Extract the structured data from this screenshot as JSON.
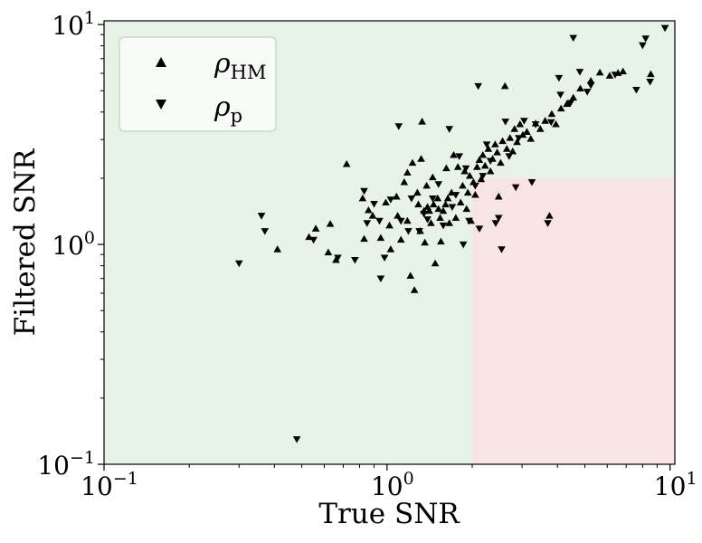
{
  "chart_data": {
    "type": "scatter",
    "title": "",
    "xlabel": "True SNR",
    "ylabel": "Filtered SNR",
    "xscale": "log",
    "yscale": "log",
    "xlim": [
      0.1,
      10.4
    ],
    "ylim": [
      0.1,
      10.4
    ],
    "x_ticks": [
      {
        "base": "10",
        "exp": "−1"
      },
      {
        "base": "10",
        "exp": "0"
      },
      {
        "base": "10",
        "exp": "1"
      }
    ],
    "y_ticks": [
      {
        "base": "10",
        "exp": "−1"
      },
      {
        "base": "10",
        "exp": "0"
      },
      {
        "base": "10",
        "exp": "1"
      }
    ],
    "grid": false,
    "legend": {
      "placement": "top-left",
      "entries": [
        {
          "symbol": "triangle-up",
          "label": "ρ",
          "subscript": "HM"
        },
        {
          "symbol": "triangle-down",
          "label": "ρ",
          "subscript": "p"
        }
      ]
    },
    "regions": [
      {
        "name": "background",
        "color": "#e8f3e8"
      },
      {
        "name": "x>2,y<2",
        "x_range": [
          2,
          10.4
        ],
        "y_range": [
          0.1,
          2
        ],
        "color": "#f9e4e4"
      }
    ],
    "marker_color": "#000000",
    "series": [
      {
        "name": "ρHM",
        "marker": "triangle-up",
        "points": [
          [
            0.41,
            0.95
          ],
          [
            0.53,
            1.08
          ],
          [
            0.56,
            1.18
          ],
          [
            0.62,
            0.92
          ],
          [
            0.63,
            1.24
          ],
          [
            0.66,
            0.85
          ],
          [
            0.72,
            2.32
          ],
          [
            0.82,
            1.62
          ],
          [
            0.83,
            1.06
          ],
          [
            0.86,
            1.43
          ],
          [
            0.89,
            1.35
          ],
          [
            0.95,
            1.07
          ],
          [
            0.99,
            1.55
          ],
          [
            1.02,
            1.22
          ],
          [
            1.03,
            0.95
          ],
          [
            1.08,
            1.65
          ],
          [
            1.09,
            1.35
          ],
          [
            1.12,
            1.05
          ],
          [
            1.15,
            1.92
          ],
          [
            1.18,
            1.28
          ],
          [
            1.18,
            2.12
          ],
          [
            1.21,
            0.72
          ],
          [
            1.23,
            2.35
          ],
          [
            1.25,
            0.62
          ],
          [
            1.28,
            1.72
          ],
          [
            1.29,
            1.52
          ],
          [
            1.31,
            1.15
          ],
          [
            1.32,
            2.45
          ],
          [
            1.33,
            3.62
          ],
          [
            1.35,
            1.42
          ],
          [
            1.36,
            1.02
          ],
          [
            1.38,
            1.85
          ],
          [
            1.39,
            1.48
          ],
          [
            1.41,
            1.42
          ],
          [
            1.43,
            1.25
          ],
          [
            1.45,
            2.02
          ],
          [
            1.46,
            1.52
          ],
          [
            1.48,
            0.82
          ],
          [
            1.51,
            1.62
          ],
          [
            1.52,
            1.45
          ],
          [
            1.54,
            1.32
          ],
          [
            1.55,
            1.03
          ],
          [
            1.58,
            1.42
          ],
          [
            1.61,
            1.52
          ],
          [
            1.62,
            2.22
          ],
          [
            1.64,
            1.62
          ],
          [
            1.66,
            1.25
          ],
          [
            1.69,
            1.72
          ],
          [
            1.72,
            2.55
          ],
          [
            1.75,
            1.32
          ],
          [
            1.78,
            2.25
          ],
          [
            1.82,
            1.55
          ],
          [
            1.85,
            1.85
          ],
          [
            1.88,
            2.15
          ],
          [
            1.91,
            1.45
          ],
          [
            1.93,
            1.72
          ],
          [
            1.96,
            2.05
          ],
          [
            1.98,
            1.28
          ],
          [
            2.02,
            1.92
          ],
          [
            2.05,
            1.68
          ],
          [
            2.08,
            2.25
          ],
          [
            2.12,
            2.42
          ],
          [
            2.15,
            1.98
          ],
          [
            2.18,
            2.55
          ],
          [
            2.22,
            2.28
          ],
          [
            2.28,
            2.72
          ],
          [
            2.32,
            2.15
          ],
          [
            2.36,
            2.45
          ],
          [
            2.41,
            2.85
          ],
          [
            2.45,
            2.62
          ],
          [
            2.48,
            1.65
          ],
          [
            2.52,
            2.35
          ],
          [
            2.56,
            2.95
          ],
          [
            2.61,
            5.25
          ],
          [
            2.65,
            2.72
          ],
          [
            2.72,
            3.05
          ],
          [
            2.78,
            2.65
          ],
          [
            2.82,
            3.35
          ],
          [
            2.88,
            2.92
          ],
          [
            2.95,
            3.52
          ],
          [
            3.02,
            3.15
          ],
          [
            3.12,
            3.25
          ],
          [
            3.22,
            3.02
          ],
          [
            3.35,
            3.55
          ],
          [
            3.48,
            3.35
          ],
          [
            3.62,
            3.65
          ],
          [
            3.75,
            1.35
          ],
          [
            3.82,
            3.92
          ],
          [
            3.95,
            3.52
          ],
          [
            4.12,
            4.15
          ],
          [
            4.32,
            4.35
          ],
          [
            4.55,
            4.65
          ],
          [
            4.82,
            5.12
          ],
          [
            5.25,
            5.55
          ],
          [
            5.65,
            6.05
          ],
          [
            6.12,
            5.85
          ],
          [
            6.55,
            6.02
          ],
          [
            6.82,
            6.12
          ],
          [
            8.55,
            5.95
          ]
        ]
      },
      {
        "name": "ρp",
        "marker": "triangle-down",
        "points": [
          [
            0.3,
            0.82
          ],
          [
            0.36,
            1.35
          ],
          [
            0.37,
            1.15
          ],
          [
            0.48,
            0.13
          ],
          [
            0.55,
            1.05
          ],
          [
            0.67,
            0.87
          ],
          [
            0.77,
            0.85
          ],
          [
            0.83,
            1.75
          ],
          [
            0.85,
            1.25
          ],
          [
            0.9,
            1.53
          ],
          [
            0.94,
            1.28
          ],
          [
            0.95,
            0.7
          ],
          [
            0.98,
            0.87
          ],
          [
            1.03,
            1.6
          ],
          [
            1.1,
            3.45
          ],
          [
            1.12,
            1.28
          ],
          [
            1.19,
            1.15
          ],
          [
            1.22,
            1.62
          ],
          [
            1.3,
            1.15
          ],
          [
            1.35,
            1.38
          ],
          [
            1.39,
            1.3
          ],
          [
            1.45,
            1.62
          ],
          [
            1.52,
            1.88
          ],
          [
            1.58,
            1.22
          ],
          [
            1.66,
            3.35
          ],
          [
            1.7,
            1.48
          ],
          [
            1.75,
            1.68
          ],
          [
            1.8,
            2.52
          ],
          [
            1.86,
            1.0
          ],
          [
            1.9,
            2.22
          ],
          [
            1.95,
            1.28
          ],
          [
            2.05,
            1.85
          ],
          [
            2.1,
            5.25
          ],
          [
            2.12,
            1.18
          ],
          [
            2.18,
            2.05
          ],
          [
            2.25,
            2.85
          ],
          [
            2.32,
            2.4
          ],
          [
            2.42,
            1.25
          ],
          [
            2.48,
            1.32
          ],
          [
            2.54,
            0.95
          ],
          [
            2.62,
            3.62
          ],
          [
            2.7,
            2.52
          ],
          [
            2.85,
            1.82
          ],
          [
            2.92,
            3.05
          ],
          [
            3.05,
            3.65
          ],
          [
            3.25,
            1.92
          ],
          [
            3.35,
            3.52
          ],
          [
            3.7,
            1.25
          ],
          [
            3.8,
            3.6
          ],
          [
            4.05,
            5.72
          ],
          [
            4.1,
            4.8
          ],
          [
            4.45,
            4.4
          ],
          [
            4.55,
            8.7
          ],
          [
            4.8,
            6.1
          ],
          [
            5.1,
            4.95
          ],
          [
            5.25,
            5.3
          ],
          [
            6.4,
            5.92
          ],
          [
            7.6,
            5.05
          ],
          [
            8.0,
            8.05
          ],
          [
            8.2,
            8.65
          ],
          [
            8.5,
            5.5
          ],
          [
            9.6,
            9.65
          ]
        ]
      }
    ]
  }
}
